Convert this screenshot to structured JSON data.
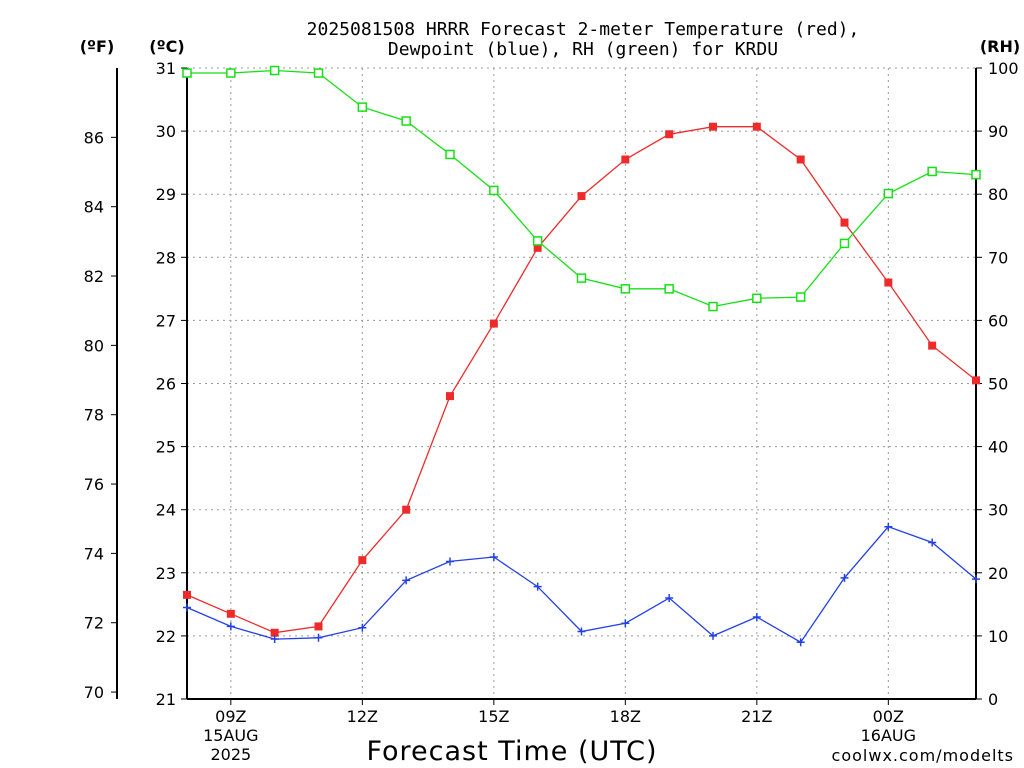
{
  "chart_data": {
    "type": "line",
    "title_line1": "2025081508 HRRR Forecast 2-meter Temperature (red),",
    "title_line2": "Dewpoint (blue), RH (green) for KRDU",
    "xlabel": "Forecast Time (UTC)",
    "x_ticks": [
      {
        "hour": 9,
        "label": "09Z",
        "sub1": "15AUG",
        "sub2": "2025"
      },
      {
        "hour": 12,
        "label": "12Z",
        "sub1": "",
        "sub2": ""
      },
      {
        "hour": 15,
        "label": "15Z",
        "sub1": "",
        "sub2": ""
      },
      {
        "hour": 18,
        "label": "18Z",
        "sub1": "",
        "sub2": ""
      },
      {
        "hour": 21,
        "label": "21Z",
        "sub1": "",
        "sub2": ""
      },
      {
        "hour": 24,
        "label": "00Z",
        "sub1": "16AUG",
        "sub2": ""
      }
    ],
    "x": [
      8,
      9,
      10,
      11,
      12,
      13,
      14,
      15,
      16,
      17,
      18,
      19,
      20,
      21,
      22,
      23,
      24,
      25,
      26
    ],
    "xlim": [
      8,
      26
    ],
    "axes": {
      "fahrenheit": {
        "header": "(ºF)",
        "ticks": [
          70,
          72,
          74,
          76,
          78,
          80,
          82,
          84,
          86
        ],
        "lim": [
          69.8,
          88.0
        ]
      },
      "celsius": {
        "header": "(ºC)",
        "ticks": [
          21,
          22,
          23,
          24,
          25,
          26,
          27,
          28,
          29,
          30,
          31
        ],
        "lim": [
          21,
          31
        ]
      },
      "rh": {
        "header": "(RH)",
        "ticks": [
          0,
          10,
          20,
          30,
          40,
          50,
          60,
          70,
          80,
          90,
          100
        ],
        "lim": [
          0,
          100
        ]
      }
    },
    "grid": true,
    "series": [
      {
        "key": "temperature",
        "axis": "celsius",
        "color": "#ee2b2b",
        "marker": "filled-square",
        "values": [
          22.65,
          22.35,
          22.05,
          22.15,
          23.2,
          24.0,
          25.8,
          26.95,
          28.15,
          28.97,
          29.55,
          29.95,
          30.07,
          30.07,
          29.55,
          28.55,
          27.6,
          26.6,
          26.05
        ]
      },
      {
        "key": "dewpoint",
        "axis": "celsius",
        "color": "#2441e6",
        "marker": "plus",
        "values": [
          22.45,
          22.15,
          21.95,
          21.97,
          22.13,
          22.88,
          23.18,
          23.25,
          22.78,
          22.07,
          22.2,
          22.6,
          22.0,
          22.3,
          21.9,
          22.92,
          23.73,
          23.48,
          22.9
        ]
      },
      {
        "key": "rh",
        "axis": "rh",
        "color": "#16e016",
        "marker": "open-square",
        "values": [
          99.2,
          99.2,
          99.6,
          99.2,
          93.8,
          91.6,
          86.3,
          80.6,
          72.6,
          66.7,
          65.0,
          65.0,
          62.2,
          63.5,
          63.7,
          72.2,
          80.1,
          83.6,
          83.1
        ]
      }
    ]
  },
  "footer": {
    "credit": "coolwx.com/modelts"
  },
  "colors": {
    "credit": "#d11a1a",
    "grid": "#9a9a9a"
  }
}
